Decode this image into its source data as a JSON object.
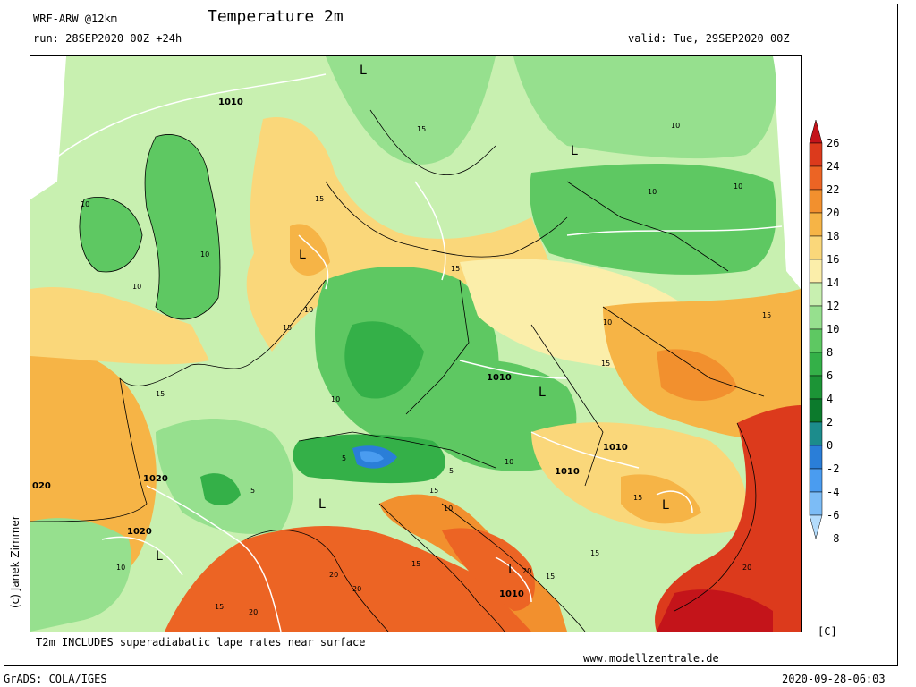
{
  "header": {
    "model": "WRF-ARW @12km",
    "title": "Temperature 2m",
    "run": "run: 28SEP2020 00Z +24h",
    "valid": "valid: Tue, 29SEP2020 00Z"
  },
  "footer": {
    "note": "T2m INCLUDES superadiabatic lape rates near surface",
    "website": "www.modellzentrale.de",
    "grads": "GrADS: COLA/IGES",
    "timestamp": "2020-09-28-06:03",
    "copyright": "(c) Janek Zimmer"
  },
  "colorbar": {
    "unit": "[C]",
    "levels": [
      {
        "label": "26",
        "color": "#c4141a"
      },
      {
        "label": "24",
        "color": "#dc3a1c"
      },
      {
        "label": "22",
        "color": "#ec6424"
      },
      {
        "label": "20",
        "color": "#f2902e"
      },
      {
        "label": "18",
        "color": "#f6b446"
      },
      {
        "label": "16",
        "color": "#fad77a"
      },
      {
        "label": "14",
        "color": "#fbeeaa"
      },
      {
        "label": "12",
        "color": "#c8f0b0"
      },
      {
        "label": "10",
        "color": "#96e08e"
      },
      {
        "label": "8",
        "color": "#5ec862"
      },
      {
        "label": "6",
        "color": "#34b048"
      },
      {
        "label": "4",
        "color": "#1c9436"
      },
      {
        "label": "2",
        "color": "#0c7a2c"
      },
      {
        "label": "0",
        "color": "#1c8c8c"
      },
      {
        "label": "-2",
        "color": "#2a7ed8"
      },
      {
        "label": "-4",
        "color": "#4a9cf0"
      },
      {
        "label": "-6",
        "color": "#7cbcf6"
      },
      {
        "label": "-8",
        "color": "#b4dcfc"
      }
    ]
  },
  "map_labels": {
    "isobars": [
      "1010",
      "1010",
      "1010",
      "1010",
      "1020",
      "1020",
      "1010",
      "020"
    ],
    "lows": [
      "L",
      "L",
      "L",
      "L",
      "L",
      "L",
      "L",
      "L"
    ],
    "isotherms": [
      "10",
      "15",
      "10",
      "10",
      "15",
      "15",
      "10",
      "10",
      "15",
      "10",
      "15",
      "5",
      "5",
      "5",
      "10",
      "15",
      "20",
      "20",
      "15",
      "20",
      "20",
      "15",
      "15",
      "10",
      "10",
      "15",
      "15",
      "10",
      "20",
      "15",
      "10",
      "10",
      "15"
    ]
  }
}
